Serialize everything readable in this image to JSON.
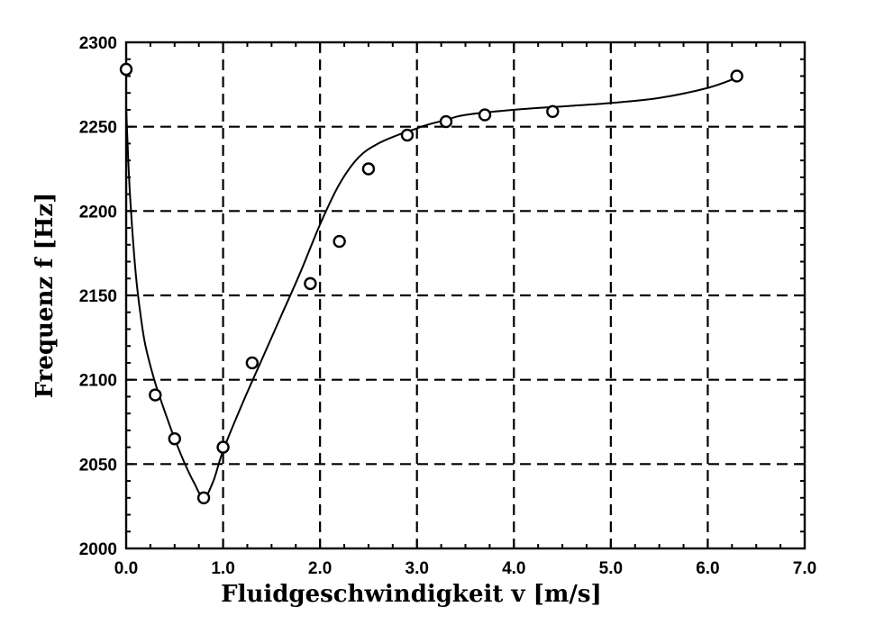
{
  "chart_data": {
    "type": "scatter",
    "title": "",
    "xlabel": "Fluidgeschwindigkeit v [m/s]",
    "ylabel": "Frequenz f [Hz]",
    "xlim": [
      0.0,
      7.0
    ],
    "ylim": [
      2000,
      2300
    ],
    "x_ticks": [
      "0.0",
      "1.0",
      "2.0",
      "3.0",
      "4.0",
      "5.0",
      "6.0",
      "7.0"
    ],
    "y_ticks": [
      "2000",
      "2050",
      "2100",
      "2150",
      "2200",
      "2250",
      "2300"
    ],
    "grid": true,
    "series": [
      {
        "marker": "circle",
        "x": [
          0.0,
          0.3,
          0.5,
          0.8,
          1.0,
          1.3,
          1.9,
          2.2,
          2.5,
          2.9,
          3.3,
          3.7,
          4.4,
          6.3
        ],
        "y": [
          2284,
          2091,
          2065,
          2030,
          2060,
          2110,
          2157,
          2182,
          2225,
          2245,
          2253,
          2257,
          2259,
          2280
        ]
      }
    ],
    "fit_curve": {
      "style": "solid",
      "x": [
        0.0,
        0.02,
        0.05,
        0.1,
        0.15,
        0.2,
        0.3,
        0.4,
        0.5,
        0.6,
        0.7,
        0.8,
        0.9,
        1.0,
        1.2,
        1.4,
        1.6,
        1.8,
        2.0,
        2.2,
        2.4,
        2.6,
        2.8,
        2.95,
        3.1,
        3.3,
        3.5,
        4.0,
        4.5,
        5.0,
        5.5,
        6.0,
        6.3
      ],
      "y": [
        2262,
        2232,
        2200,
        2162,
        2138,
        2120,
        2098,
        2081,
        2065,
        2051,
        2039,
        2030,
        2040,
        2058,
        2086,
        2112,
        2138,
        2164,
        2192,
        2216,
        2232,
        2240,
        2245,
        2248,
        2251,
        2254,
        2257,
        2260,
        2262,
        2264,
        2267,
        2273,
        2279
      ]
    }
  }
}
